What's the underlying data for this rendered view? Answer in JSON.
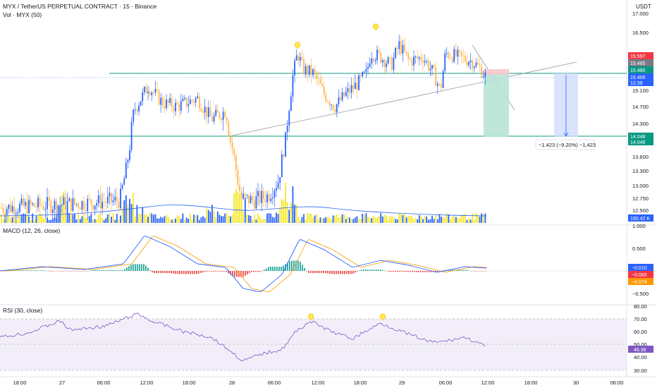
{
  "header": {
    "symbol_line": "MYX / TetherUS PERPETUAL CONTRACT · 15 · Binance",
    "volume_line": "Vol · MYX (50)",
    "currency": "USDT"
  },
  "price_axis": {
    "ticks": [
      "17.000",
      "16.500",
      "15.100",
      "14.700",
      "14.300",
      "13.600",
      "13.300",
      "13.000",
      "12.750",
      "12.500"
    ],
    "badges": [
      {
        "label": "15.597",
        "color": "#f23645"
      },
      {
        "label": "15.485",
        "color": "#787b86"
      },
      {
        "label": "15.480",
        "color": "#089981"
      },
      {
        "label": "15.406",
        "color": "#2962ff"
      },
      {
        "label": "12:39",
        "color": "#2962ff"
      },
      {
        "label": "14.048",
        "color": "#089981"
      },
      {
        "label": "14.046",
        "color": "#089981"
      },
      {
        "label": "190.42 K",
        "color": "#2962ff"
      }
    ]
  },
  "measure_label": "−1.423 (−9.20%) −1,423",
  "macd": {
    "title": "MACD (12, 26, close)",
    "ticks": [
      "1.000",
      "0.500",
      "−0.500"
    ],
    "badges": [
      {
        "label": "−0.010",
        "color": "#2962ff"
      },
      {
        "label": "−0.065",
        "color": "#f23645"
      },
      {
        "label": "−0.074",
        "color": "#ff9800"
      }
    ]
  },
  "rsi": {
    "title": "RSI (30, close)",
    "ticks": [
      "80.00",
      "70.00",
      "60.00",
      "50.00",
      "40.00",
      "30.00"
    ],
    "badge": {
      "label": "46.36",
      "color": "#7e57c2"
    }
  },
  "time_axis": {
    "labels": [
      "18:00",
      "27",
      "06:00",
      "12:00",
      "18:00",
      "28",
      "06:00",
      "12:00",
      "18:00",
      "29",
      "06:00",
      "12:00",
      "18:00",
      "30",
      "06:00"
    ]
  },
  "chart_data": {
    "type": "candlestick",
    "pair": "MYX / USDT",
    "support_level": 14.046,
    "resistance_level": 15.48,
    "last_price": 15.406,
    "rsi_last": 46.36
  }
}
